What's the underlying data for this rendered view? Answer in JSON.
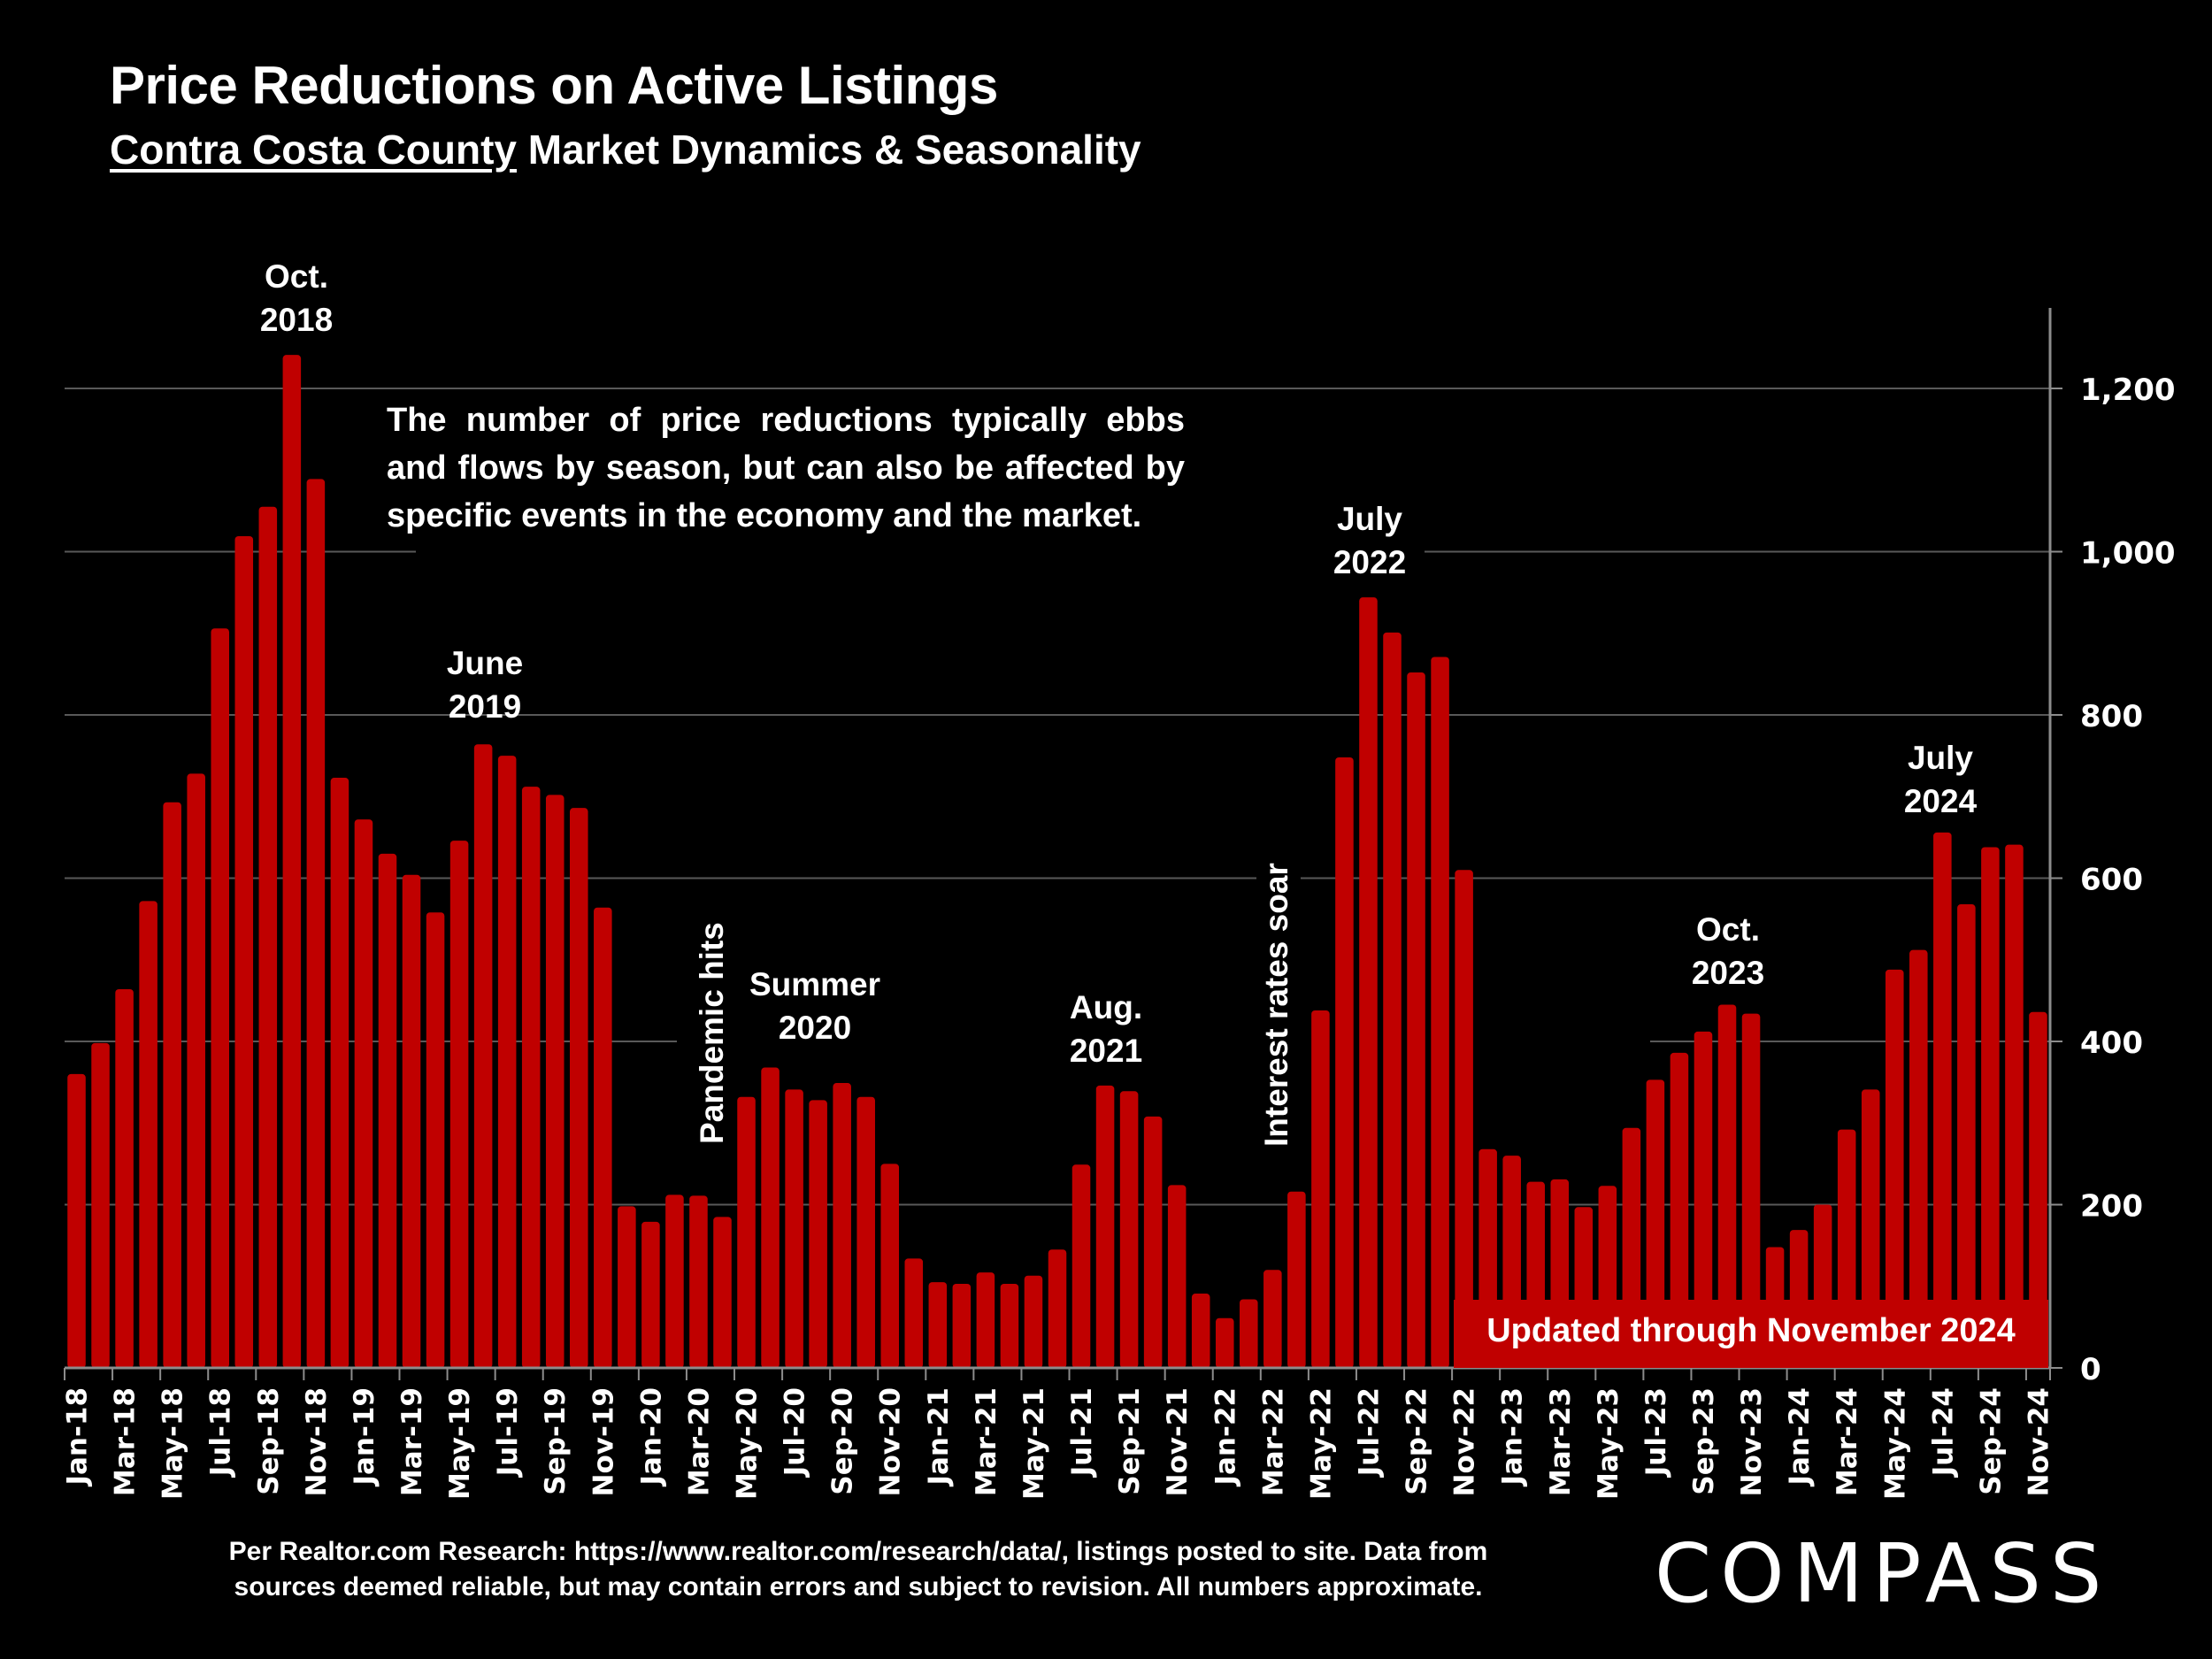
{
  "header": {
    "title": "Price Reductions on Active Listings",
    "subtitle_county": "Contra Costa County",
    "subtitle_rest": " Market Dynamics & Seasonality"
  },
  "note": "The number of price reductions typically ebbs and flows by season, but can also be affected by specific events in the economy and the market.",
  "updated_label": "Updated through November 2024",
  "footer": {
    "line1": "Per Realtor.com Research:  https://www.realtor.com/research/data/, listings posted to site. Data from",
    "line2": "sources deemed reliable, but may contain errors and subject to revision. All numbers approximate."
  },
  "logo": "COMPASS",
  "colors": {
    "bar": "#c00000",
    "background": "#000000",
    "grid": "#595959",
    "text": "#ffffff"
  },
  "annotations": [
    {
      "line1": "Oct.",
      "line2": "2018",
      "month": "Oct-18"
    },
    {
      "line1": "June",
      "line2": "2019",
      "month": "Jun-19"
    },
    {
      "line1": "Summer",
      "line2": "2020",
      "month": "Jul-20"
    },
    {
      "line1": "Aug.",
      "line2": "2021",
      "month": "Aug-21"
    },
    {
      "line1": "July",
      "line2": "2022",
      "month": "Jul-22"
    },
    {
      "line1": "Oct.",
      "line2": "2023",
      "month": "Oct-23"
    },
    {
      "line1": "July",
      "line2": "2024",
      "month": "Jul-24"
    }
  ],
  "vertical_annotations": [
    {
      "text": "Pandemic hits",
      "month": "Apr-20"
    },
    {
      "text": "Interest rates soar",
      "month": "Mar-22"
    }
  ],
  "chart_data": {
    "type": "bar",
    "title": "Price Reductions on Active Listings",
    "subtitle": "Contra Costa County Market Dynamics & Seasonality",
    "xlabel": "",
    "ylabel": "",
    "y_axis_side": "right",
    "ylim": [
      0,
      1300
    ],
    "yticks": [
      0,
      200,
      400,
      600,
      800,
      1000,
      1200
    ],
    "ytick_labels": [
      "0",
      "200",
      "400",
      "600",
      "800",
      "1,000",
      "1,200"
    ],
    "grid": true,
    "categories": [
      "Jan-18",
      "Feb-18",
      "Mar-18",
      "Apr-18",
      "May-18",
      "Jun-18",
      "Jul-18",
      "Aug-18",
      "Sep-18",
      "Oct-18",
      "Nov-18",
      "Dec-18",
      "Jan-19",
      "Feb-19",
      "Mar-19",
      "Apr-19",
      "May-19",
      "Jun-19",
      "Jul-19",
      "Aug-19",
      "Sep-19",
      "Oct-19",
      "Nov-19",
      "Dec-19",
      "Jan-20",
      "Feb-20",
      "Mar-20",
      "Apr-20",
      "May-20",
      "Jun-20",
      "Jul-20",
      "Aug-20",
      "Sep-20",
      "Oct-20",
      "Nov-20",
      "Dec-20",
      "Jan-21",
      "Feb-21",
      "Mar-21",
      "Apr-21",
      "May-21",
      "Jun-21",
      "Jul-21",
      "Aug-21",
      "Sep-21",
      "Oct-21",
      "Nov-21",
      "Dec-21",
      "Jan-22",
      "Feb-22",
      "Mar-22",
      "Apr-22",
      "May-22",
      "Jun-22",
      "Jul-22",
      "Aug-22",
      "Sep-22",
      "Oct-22",
      "Nov-22",
      "Dec-22",
      "Jan-23",
      "Feb-23",
      "Mar-23",
      "Apr-23",
      "May-23",
      "Jun-23",
      "Jul-23",
      "Aug-23",
      "Sep-23",
      "Oct-23",
      "Nov-23",
      "Dec-23",
      "Jan-24",
      "Feb-24",
      "Mar-24",
      "Apr-24",
      "May-24",
      "Jun-24",
      "Jul-24",
      "Aug-24",
      "Sep-24",
      "Oct-24",
      "Nov-24"
    ],
    "values": [
      360,
      398,
      464,
      572,
      693,
      728,
      906,
      1019,
      1055,
      1241,
      1089,
      723,
      672,
      630,
      604,
      558,
      646,
      764,
      750,
      712,
      702,
      686,
      564,
      198,
      179,
      212,
      211,
      185,
      332,
      368,
      341,
      328,
      349,
      332,
      250,
      134,
      105,
      103,
      117,
      103,
      113,
      145,
      249,
      346,
      339,
      308,
      224,
      91,
      61,
      84,
      120,
      216,
      438,
      748,
      944,
      901,
      852,
      871,
      610,
      268,
      260,
      228,
      231,
      197,
      223,
      294,
      353,
      386,
      412,
      445,
      434,
      148,
      169,
      200,
      292,
      341,
      488,
      512,
      656,
      568,
      638,
      641,
      436
    ],
    "xtick_labels_every": 2,
    "series": [
      {
        "name": "Price Reductions",
        "color": "#c00000"
      }
    ]
  }
}
